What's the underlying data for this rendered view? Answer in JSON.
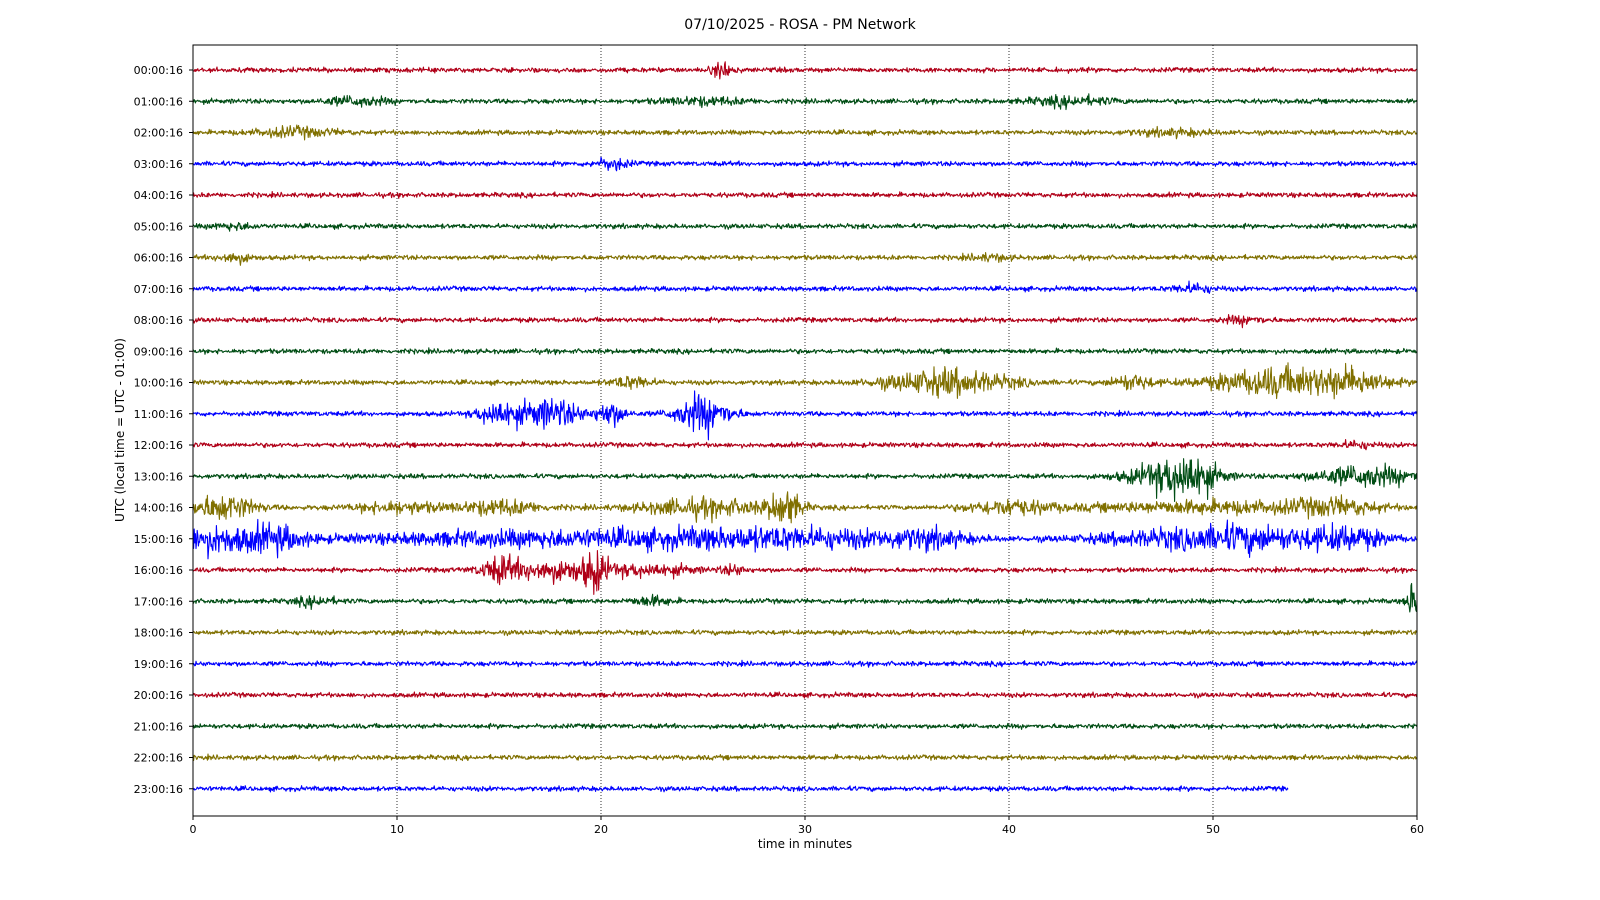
{
  "chart_data": {
    "type": "line",
    "title": "07/10/2025 - ROSA - PM Network",
    "xlabel": "time in minutes",
    "ylabel": "UTC (local time = UTC - 01:00)",
    "xlim": [
      0,
      60
    ],
    "x_ticks": [
      "0",
      "10",
      "20",
      "30",
      "40",
      "50",
      "60"
    ],
    "grid": "vertical dotted",
    "colors": [
      "#b00018",
      "#004d14",
      "#807000",
      "#0000ff"
    ],
    "rows": [
      {
        "label": "00:00:16",
        "end_minute": 60,
        "bursts": [
          [
            26,
            0.5,
            0.6
          ]
        ]
      },
      {
        "label": "01:00:16",
        "end_minute": 60,
        "bursts": [
          [
            8,
            1.5,
            0.3
          ],
          [
            25,
            2,
            0.25
          ],
          [
            43,
            2,
            0.3
          ]
        ]
      },
      {
        "label": "02:00:16",
        "end_minute": 60,
        "bursts": [
          [
            5,
            2,
            0.3
          ],
          [
            48,
            2,
            0.2
          ]
        ]
      },
      {
        "label": "03:00:16",
        "end_minute": 60,
        "bursts": [
          [
            20.5,
            0.8,
            0.4
          ]
        ]
      },
      {
        "label": "04:00:16",
        "end_minute": 60,
        "bursts": []
      },
      {
        "label": "05:00:16",
        "end_minute": 60,
        "bursts": [
          [
            2,
            1,
            0.2
          ]
        ]
      },
      {
        "label": "06:00:16",
        "end_minute": 60,
        "bursts": [
          [
            2,
            0.8,
            0.35
          ],
          [
            39,
            1,
            0.2
          ]
        ]
      },
      {
        "label": "07:00:16",
        "end_minute": 60,
        "bursts": [
          [
            49,
            1,
            0.3
          ]
        ]
      },
      {
        "label": "08:00:16",
        "end_minute": 60,
        "bursts": [
          [
            51.5,
            1,
            0.25
          ]
        ]
      },
      {
        "label": "09:00:16",
        "end_minute": 60,
        "bursts": []
      },
      {
        "label": "10:00:16",
        "end_minute": 60,
        "bursts": [
          [
            21.5,
            1,
            0.4
          ],
          [
            37,
            3,
            0.9
          ],
          [
            46,
            1,
            0.5
          ],
          [
            53.5,
            3.5,
            1.0
          ],
          [
            57,
            1.5,
            0.6
          ]
        ]
      },
      {
        "label": "11:00:16",
        "end_minute": 60,
        "bursts": [
          [
            15,
            1,
            0.9
          ],
          [
            17.5,
            1.5,
            1.0
          ],
          [
            20.5,
            0.7,
            0.8
          ],
          [
            25,
            1.3,
            1.3
          ]
        ]
      },
      {
        "label": "12:00:16",
        "end_minute": 60,
        "bursts": [
          [
            57,
            1,
            0.2
          ]
        ]
      },
      {
        "label": "13:00:16",
        "end_minute": 60,
        "bursts": [
          [
            48,
            2,
            1.1
          ],
          [
            49,
            1,
            0.9
          ],
          [
            57.5,
            2.5,
            0.7
          ]
        ]
      },
      {
        "label": "14:00:16",
        "end_minute": 60,
        "bursts": [
          [
            1.5,
            1.5,
            0.9
          ],
          [
            10,
            2,
            0.4
          ],
          [
            15,
            2,
            0.5
          ],
          [
            25,
            3,
            0.6
          ],
          [
            29,
            0.8,
            1.2
          ],
          [
            40,
            2,
            0.5
          ],
          [
            50,
            6,
            0.4
          ],
          [
            56,
            2,
            0.5
          ]
        ]
      },
      {
        "label": "15:00:16",
        "end_minute": 60,
        "bursts": [
          [
            1,
            2,
            0.9
          ],
          [
            4,
            1.5,
            0.8
          ],
          [
            18,
            10,
            0.55
          ],
          [
            29.5,
            6,
            0.6
          ],
          [
            36,
            2,
            0.5
          ],
          [
            48,
            4,
            0.55
          ],
          [
            52,
            3,
            0.7
          ],
          [
            56.5,
            2,
            0.8
          ]
        ]
      },
      {
        "label": "16:00:16",
        "end_minute": 60,
        "bursts": [
          [
            15,
            0.8,
            0.7
          ],
          [
            17.5,
            2.5,
            0.7
          ],
          [
            19.7,
            0.6,
            1.1
          ],
          [
            22.5,
            2,
            0.4
          ],
          [
            26.5,
            0.6,
            0.3
          ]
        ]
      },
      {
        "label": "17:00:16",
        "end_minute": 60,
        "bursts": [
          [
            6,
            1,
            0.3
          ],
          [
            22.5,
            1,
            0.3
          ],
          [
            59.8,
            0.3,
            1.2
          ]
        ]
      },
      {
        "label": "18:00:16",
        "end_minute": 60,
        "bursts": []
      },
      {
        "label": "19:00:16",
        "end_minute": 60,
        "bursts": []
      },
      {
        "label": "20:00:16",
        "end_minute": 60,
        "bursts": []
      },
      {
        "label": "21:00:16",
        "end_minute": 60,
        "bursts": []
      },
      {
        "label": "22:00:16",
        "end_minute": 60,
        "bursts": []
      },
      {
        "label": "23:00:16",
        "end_minute": 53.7,
        "bursts": []
      }
    ]
  }
}
